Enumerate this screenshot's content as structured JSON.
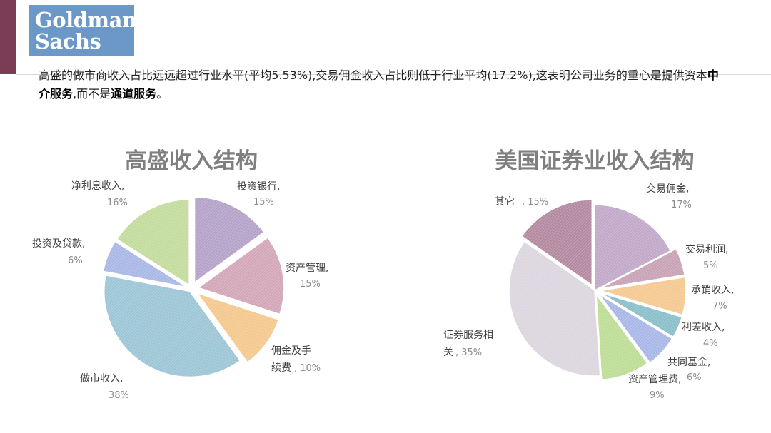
{
  "header": {
    "logo_line1": "Goldman",
    "logo_line2": "Sachs",
    "desc_part1": "高盛的做市商收入占比远远超过行业水平(平均5.53%),交易佣金收入占比则低于行业平均(17.2%),这表明公司业务的重心是提供资本",
    "desc_bold1": "中介服务",
    "desc_part2": ",而不是",
    "desc_bold2": "通道服务",
    "desc_part3": "。"
  },
  "chart_data": [
    {
      "type": "pie",
      "title": "高盛收入结构",
      "slices": [
        {
          "label": "投资银行",
          "value": 15,
          "pct_text": "15%",
          "color": "#b5a3c9"
        },
        {
          "label": "资产管理",
          "value": 15,
          "pct_text": "15%",
          "color": "#d3a7b8"
        },
        {
          "label": "佣金及手续费",
          "value": 10,
          "pct_text": "10%",
          "color": "#f4c98f"
        },
        {
          "label": "做市收入",
          "value": 38,
          "pct_text": "38%",
          "color": "#9dc6d6"
        },
        {
          "label": "投资及贷款",
          "value": 6,
          "pct_text": "6%",
          "color": "#aab8e6"
        },
        {
          "label": "净利息收入",
          "value": 16,
          "pct_text": "16%",
          "color": "#c3dc9d"
        }
      ],
      "legend": "none"
    },
    {
      "type": "pie",
      "title": "美国证券业收入结构",
      "slices": [
        {
          "label": "交易佣金",
          "value": 17,
          "pct_text": "17%",
          "color": "#c2a9c9"
        },
        {
          "label": "交易利润",
          "value": 5,
          "pct_text": "5%",
          "color": "#c8a3b6"
        },
        {
          "label": "承销收入",
          "value": 7,
          "pct_text": "7%",
          "color": "#f5c992"
        },
        {
          "label": "利差收入",
          "value": 4,
          "pct_text": "4%",
          "color": "#8bbfc9"
        },
        {
          "label": "共同基金",
          "value": 6,
          "pct_text": "6%",
          "color": "#a9b8e8"
        },
        {
          "label": "资产管理费",
          "value": 9,
          "pct_text": "9%",
          "color": "#bedd96"
        },
        {
          "label": "证券服务相关",
          "value": 35,
          "pct_text": "35%",
          "color": "#dcd6df"
        },
        {
          "label": "其它",
          "value": 15,
          "pct_text": "15%",
          "color": "#b48aa1"
        }
      ],
      "legend": "none"
    }
  ]
}
